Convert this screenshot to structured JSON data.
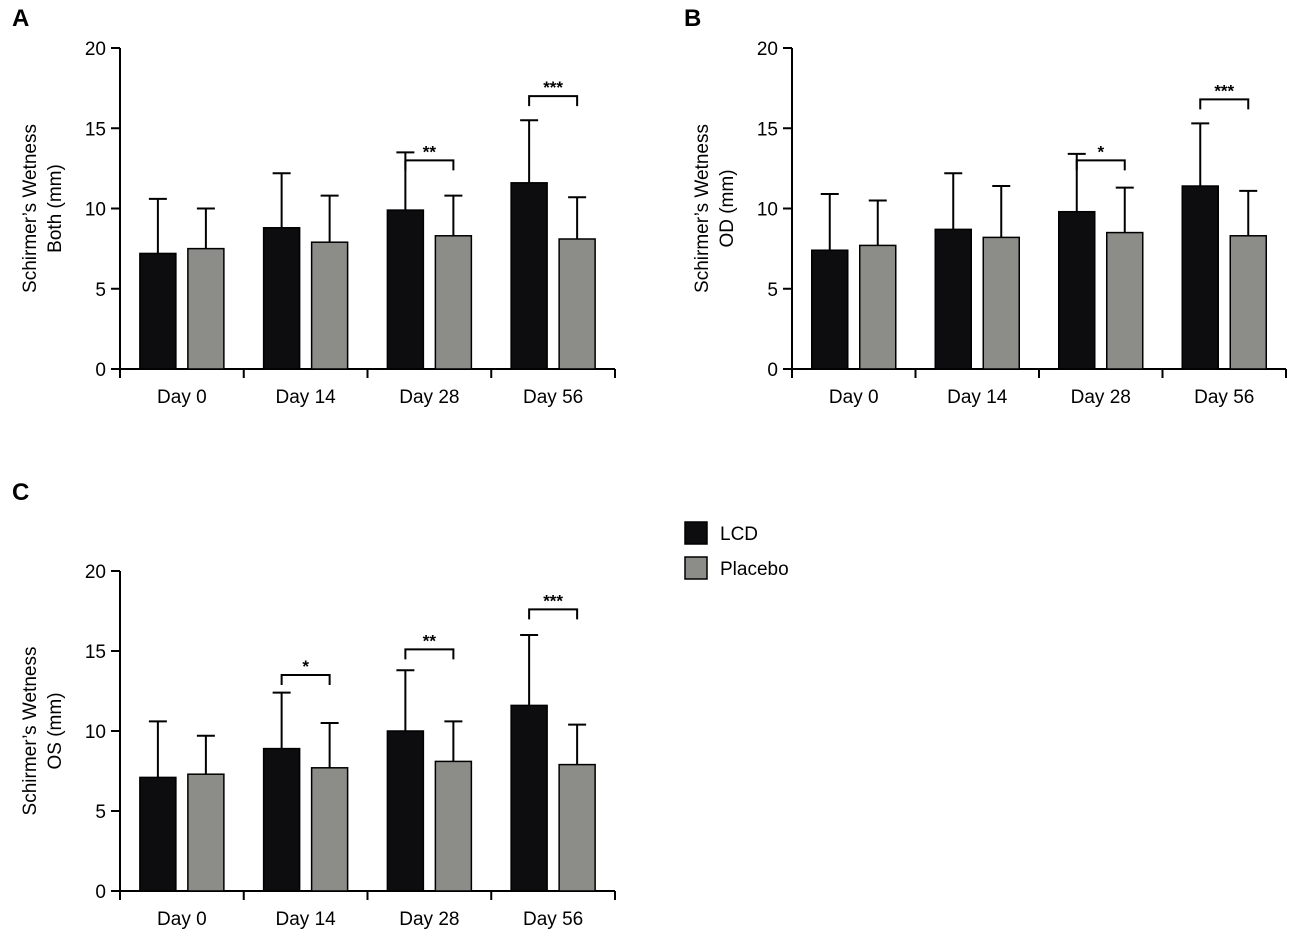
{
  "legend": {
    "items": [
      {
        "label": "LCD",
        "color": "#0d0d0f"
      },
      {
        "label": "Placebo",
        "color": "#8c8c88"
      }
    ]
  },
  "chart_data": [
    {
      "panel": "A",
      "type": "bar",
      "title": "",
      "xlabel": "",
      "ylabel_lines": [
        "Schirmer’s Wetness",
        "Both (mm)"
      ],
      "categories": [
        "Day 0",
        "Day 14",
        "Day 28",
        "Day 56"
      ],
      "ylim": [
        0,
        20
      ],
      "yticks": [
        0,
        5,
        10,
        15,
        20
      ],
      "series": [
        {
          "name": "LCD",
          "values": [
            7.2,
            8.8,
            9.9,
            11.6
          ],
          "error": [
            3.4,
            3.4,
            3.6,
            3.9
          ]
        },
        {
          "name": "Placebo",
          "values": [
            7.5,
            7.9,
            8.3,
            8.1
          ],
          "error": [
            2.5,
            2.9,
            2.5,
            2.6
          ]
        }
      ],
      "significance": [
        {
          "category": "Day 28",
          "label": "**",
          "y": 13.0
        },
        {
          "category": "Day 56",
          "label": "***",
          "y": 17.0
        }
      ]
    },
    {
      "panel": "B",
      "type": "bar",
      "title": "",
      "xlabel": "",
      "ylabel_lines": [
        "Schirmer’s Wetness",
        "OD (mm)"
      ],
      "categories": [
        "Day 0",
        "Day 14",
        "Day 28",
        "Day 56"
      ],
      "ylim": [
        0,
        20
      ],
      "yticks": [
        0,
        5,
        10,
        15,
        20
      ],
      "series": [
        {
          "name": "LCD",
          "values": [
            7.4,
            8.7,
            9.8,
            11.4
          ],
          "error": [
            3.5,
            3.5,
            3.6,
            3.9
          ]
        },
        {
          "name": "Placebo",
          "values": [
            7.7,
            8.2,
            8.5,
            8.3
          ],
          "error": [
            2.8,
            3.2,
            2.8,
            2.8
          ]
        }
      ],
      "significance": [
        {
          "category": "Day 28",
          "label": "*",
          "y": 13.0
        },
        {
          "category": "Day 56",
          "label": "***",
          "y": 16.8
        }
      ]
    },
    {
      "panel": "C",
      "type": "bar",
      "title": "",
      "xlabel": "",
      "ylabel_lines": [
        "Schirmer’s Wetness",
        "OS (mm)"
      ],
      "categories": [
        "Day 0",
        "Day 14",
        "Day 28",
        "Day 56"
      ],
      "ylim": [
        0,
        20
      ],
      "yticks": [
        0,
        5,
        10,
        15,
        20
      ],
      "series": [
        {
          "name": "LCD",
          "values": [
            7.1,
            8.9,
            10.0,
            11.6
          ],
          "error": [
            3.5,
            3.5,
            3.8,
            4.4
          ]
        },
        {
          "name": "Placebo",
          "values": [
            7.3,
            7.7,
            8.1,
            7.9
          ],
          "error": [
            2.4,
            2.8,
            2.5,
            2.5
          ]
        }
      ],
      "significance": [
        {
          "category": "Day 14",
          "label": "*",
          "y": 13.5
        },
        {
          "category": "Day 28",
          "label": "**",
          "y": 15.1
        },
        {
          "category": "Day 56",
          "label": "***",
          "y": 17.6
        }
      ]
    }
  ]
}
